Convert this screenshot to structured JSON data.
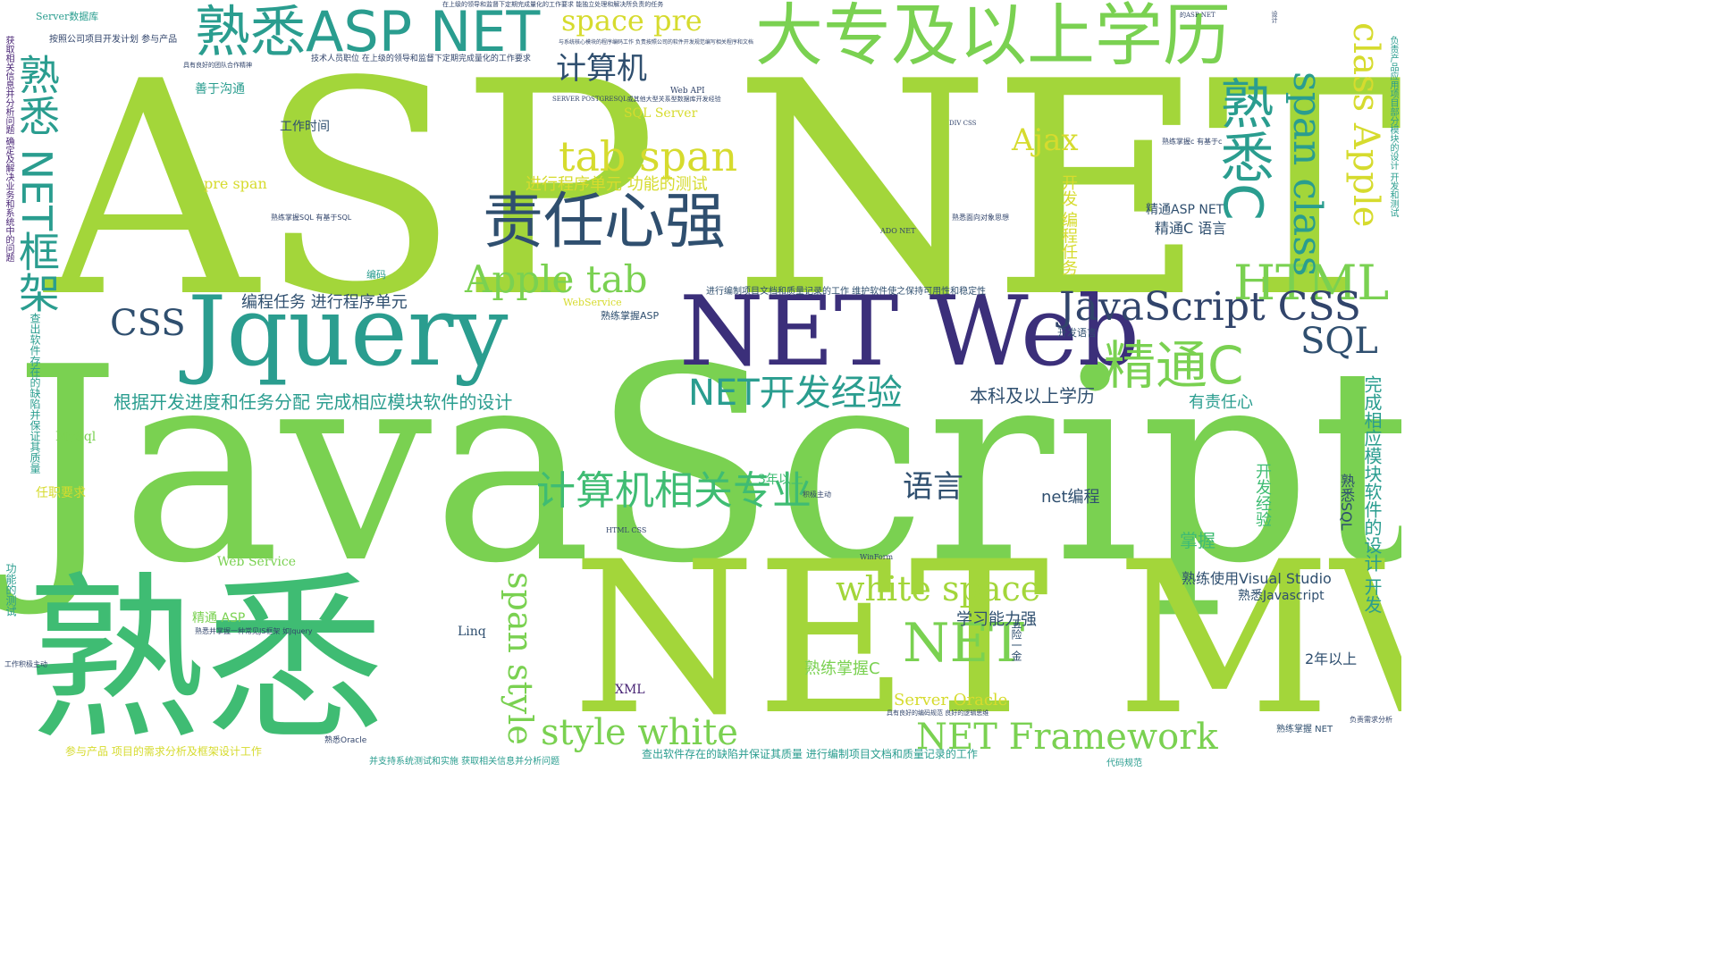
{
  "palette": {
    "lime": "#a3d63a",
    "green": "#7ad151",
    "teal": "#2a9d8f",
    "seagreen": "#3fbc73",
    "slate": "#2f4f6f",
    "indigo": "#3b2f7a",
    "navy": "#31446b",
    "yellow": "#d6db2e",
    "purple": "#482475"
  },
  "words": {
    "w01": "ASP",
    "w02": "NET",
    "w03": "JavaScript",
    "w04": "熟悉",
    "w05": "NET MVC",
    "w06": "Jquery",
    "w07": "NET Web",
    "w08": "熟悉ASP NET",
    "w09": "大专及以上学历",
    "w10": "责任心强",
    "w11": "tab span",
    "w12": "Apple tab",
    "w13": "计算机相关专业",
    "w14": "NET开发经验",
    "w15": "精通C",
    "w16": "熟悉C",
    "w17": "熟悉 NET框架",
    "w18": "HTML",
    "w19": "JavaScript CSS",
    "w20": "SQL",
    "w21": "white space",
    "w22": "style white",
    "w23": "NET Framework",
    "w24": "span style",
    "w25": "NET",
    "w26": "space pre",
    "w27": "span class",
    "w28": "class Apple",
    "w29": "计算机",
    "w30": "CSS",
    "w31": "语言",
    "w32": "Ajax",
    "w33": "根据开发进度和任务分配 完成相应模块软件的设计",
    "w34": "进行程序单元 功能的测试",
    "w35": "编程任务 进行程序单元",
    "w36": "本科及以上学历",
    "w37": "有责任心",
    "w38": "net编程",
    "w39": "熟练使用Visual Studio",
    "w40": "熟悉Javascript",
    "w41": "学习能力强",
    "w42": "熟练掌握C",
    "w43": "Server Oracle",
    "w44": "2年以上",
    "w45": "开发经验",
    "w46": "掌握",
    "w47": "熟悉SQL",
    "w48": "完成相应模块软件的设计 开发",
    "w49": "精通ASP NET",
    "w50": "精通C 语言",
    "w51": "开发 编程任务",
    "w52": "工作时间",
    "w53": "善于沟通",
    "w54": "SQL Server",
    "w55": "pre span",
    "w56": "Web Service",
    "w57": "精通 ASP",
    "w58": "Linq",
    "w59": "XML",
    "w60": "MySql",
    "w61": "任职要求",
    "w62": "3年以上",
    "w63": "参与产品 项目的需求分析及框架设计工作",
    "w64": "查出软件存在的缺陷并保证其质量 进行编制项目文档和质量记录的工作",
    "w65": "Server数据库",
    "w66": "按照公司项目开发计划 参与产品",
    "w67": "技术人员职位 在上级的领导和监督下定期完成量化的工作要求",
    "w68": "进行编制项目文档和质量记录的工作 维护软件使之保持可用性和稳定性",
    "w69": "开发语言",
    "w70": "熟练掌握ASP",
    "w71": "编码",
    "w72": "WebService",
    "w73": "五险一金",
    "w74": "熟悉并掌握一种常见JS框架 如Jquery",
    "w75": "并支持系统测试和实施 获取相关信息并分析问题",
    "w76": "熟悉Oracle",
    "w77": "熟练掌握 NET",
    "w78": "查出软件存在的缺陷并保证其质量",
    "w79": "功能的测试",
    "w80": "工作积极主动",
    "w81": "HTML CSS",
    "w82": "WinForm",
    "w83": "积极主动",
    "w84": "Web API",
    "w85": "ADO NET",
    "w86": "熟悉面向对象思想",
    "w87": "具有良好的编码规范 良好的逻辑思维",
    "w88": "熟练掌握c 有基于c",
    "w89": "设计",
    "w90": "的ASP NET",
    "w91": "在上级的领导和监督下定期完成量化的工作要求 能独立处理和解决所负责的任务",
    "w92": "与系统核心模块的程序编码工作 负责按照公司的软件开发规范编写相关程序和文档",
    "w93": "SERVER POSTGRESQL或其他大型关系型数据库开发经验",
    "w94": "熟练掌握SQL 有基于SQL",
    "w95": "具有良好的团队合作精神",
    "w96": "获取相关信息并分析问题 确定及解决业务和系统中的问题",
    "w97": "负责产品应用项目部分模块的设计 开发和测试",
    "w98": "负责需求分析",
    "w99": "代码规范",
    "w100": "DIV CSS"
  }
}
